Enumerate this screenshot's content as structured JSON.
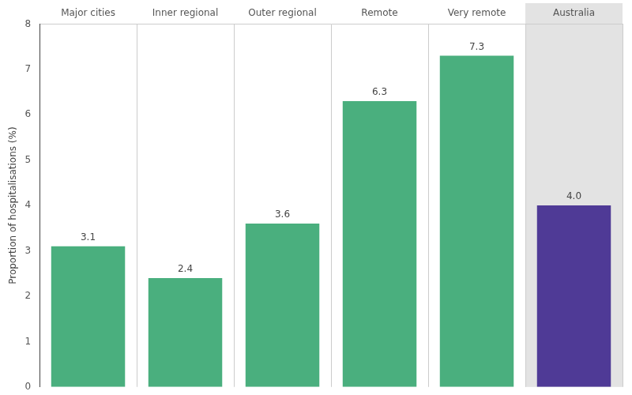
{
  "chart_data": {
    "type": "bar",
    "y_label": "Proportion of hospitalisations (%)",
    "categories": [
      "Major cities",
      "Inner regional",
      "Outer regional",
      "Remote",
      "Very remote",
      "Australia"
    ],
    "values": [
      3.1,
      2.4,
      3.6,
      6.3,
      7.3,
      4.0
    ],
    "value_labels": [
      "3.1",
      "2.4",
      "3.6",
      "6.3",
      "7.3",
      "4.0"
    ],
    "colors": [
      "#4aaf7e",
      "#4aaf7e",
      "#4aaf7e",
      "#4aaf7e",
      "#4aaf7e",
      "#4f3a96"
    ],
    "ylim": [
      0,
      8
    ],
    "yticks": [
      0,
      1,
      2,
      3,
      4,
      5,
      6,
      7,
      8
    ],
    "grid": true,
    "data_labels": true
  }
}
